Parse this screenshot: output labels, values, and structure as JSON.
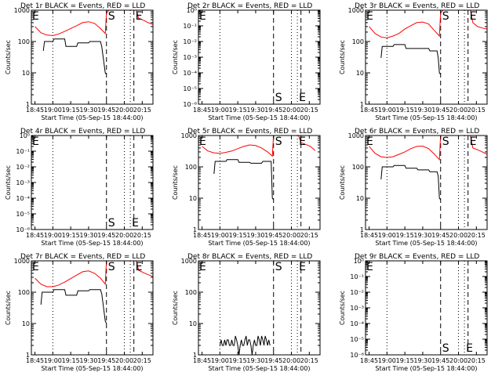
{
  "window": {
    "colors": {
      "background": "#ffffff",
      "axes": "#000000",
      "events": "#000000",
      "lld": "#ff0000"
    }
  },
  "panel_labels": {
    "xlabel": "Start Time (05-Sep-15 18:44:00)",
    "ylabel": "Counts/sec",
    "time_ticks": [
      "18:45",
      "19:00",
      "19:15",
      "19:30",
      "19:45",
      "20:00",
      "20:15"
    ],
    "log_ticks_decades": [
      "1",
      "10",
      "100",
      "1000"
    ],
    "log_ticks_fractional": [
      "10⁰",
      "10⁻¹",
      "10⁻²",
      "10⁻³",
      "10⁻⁴",
      "10⁻⁵",
      "10⁻⁶"
    ],
    "marker_s": "S",
    "marker_e": "E"
  },
  "chart_data": [
    {
      "type": "line",
      "title": "Det 1r BLACK = Events, RED = LLD",
      "xlabel": "Start Time (05-Sep-15 18:44:00)",
      "ylabel": "Counts/sec",
      "yscale": "log",
      "ylim": [
        1,
        1000
      ],
      "x_ticks": [
        "18:45",
        "19:00",
        "19:15",
        "19:30",
        "19:45",
        "20:00",
        "20:15"
      ],
      "y_ticks": [
        "1",
        "10",
        "100",
        "1000"
      ],
      "markers": [
        {
          "label": "E",
          "time": "18:45"
        },
        {
          "label": "S",
          "time": "19:45"
        },
        {
          "label": "E",
          "time": "20:08"
        }
      ],
      "series": [
        {
          "name": "LLD",
          "color": "#ff0000",
          "x": [
            "18:45",
            "18:50",
            "18:55",
            "19:00",
            "19:05",
            "19:10",
            "19:15",
            "19:20",
            "19:25",
            "19:30",
            "19:35",
            "19:40",
            "19:44",
            "19:45",
            "19:47",
            "20:10",
            "20:12",
            "20:16",
            "20:20",
            "20:24"
          ],
          "values": [
            300,
            190,
            160,
            155,
            175,
            210,
            260,
            320,
            400,
            430,
            380,
            260,
            180,
            800,
            1000,
            1000,
            550,
            480,
            400,
            350
          ]
        },
        {
          "name": "Events",
          "color": "#000000",
          "x": [
            "18:52",
            "18:53",
            "19:00",
            "19:01",
            "19:10",
            "19:11",
            "19:20",
            "19:21",
            "19:30",
            "19:31",
            "19:40",
            "19:41",
            "19:44",
            "19:45"
          ],
          "values": [
            50,
            100,
            100,
            120,
            120,
            70,
            70,
            90,
            90,
            100,
            100,
            70,
            10,
            9
          ]
        }
      ]
    },
    {
      "type": "line",
      "title": "Det 2r BLACK = Events, RED = LLD",
      "xlabel": "Start Time (05-Sep-15 18:44:00)",
      "ylabel": "Counts/sec",
      "yscale": "log",
      "ylim": [
        1e-06,
        1
      ],
      "x_ticks": [
        "18:45",
        "19:00",
        "19:15",
        "19:30",
        "19:45",
        "20:00",
        "20:15"
      ],
      "y_ticks": [
        "10⁰",
        "10⁻¹",
        "10⁻²",
        "10⁻³",
        "10⁻⁴",
        "10⁻⁵",
        "10⁻⁶"
      ],
      "markers": [
        {
          "label": "E",
          "time": "18:45"
        },
        {
          "label": "S",
          "time": "19:45"
        },
        {
          "label": "E",
          "time": "20:05"
        }
      ],
      "series": []
    },
    {
      "type": "line",
      "title": "Det 3r BLACK = Events, RED = LLD",
      "xlabel": "Start Time (05-Sep-15 18:44:00)",
      "ylabel": "Counts/sec",
      "yscale": "log",
      "ylim": [
        1,
        1000
      ],
      "x_ticks": [
        "18:45",
        "19:00",
        "19:15",
        "19:30",
        "19:45",
        "20:00",
        "20:15"
      ],
      "y_ticks": [
        "1",
        "10",
        "100",
        "1000"
      ],
      "markers": [
        {
          "label": "E",
          "time": "18:45"
        },
        {
          "label": "S",
          "time": "19:45"
        },
        {
          "label": "E",
          "time": "20:08"
        }
      ],
      "series": [
        {
          "name": "LLD",
          "color": "#ff0000",
          "x": [
            "18:45",
            "18:50",
            "18:55",
            "19:00",
            "19:05",
            "19:10",
            "19:15",
            "19:20",
            "19:25",
            "19:30",
            "19:35",
            "19:40",
            "19:44",
            "19:45",
            "19:47",
            "20:10",
            "20:12",
            "20:16",
            "20:20",
            "20:24"
          ],
          "values": [
            300,
            180,
            140,
            130,
            150,
            180,
            250,
            320,
            400,
            420,
            360,
            220,
            150,
            800,
            1000,
            1000,
            400,
            300,
            270,
            250
          ]
        },
        {
          "name": "Events",
          "color": "#000000",
          "x": [
            "18:55",
            "18:56",
            "19:05",
            "19:06",
            "19:15",
            "19:16",
            "19:25",
            "19:26",
            "19:35",
            "19:36",
            "19:42",
            "19:43",
            "19:44",
            "19:45"
          ],
          "values": [
            30,
            70,
            70,
            80,
            80,
            60,
            60,
            60,
            60,
            50,
            50,
            30,
            10,
            9
          ]
        }
      ]
    },
    {
      "type": "line",
      "title": "Det 4r BLACK = Events, RED = LLD",
      "xlabel": "Start Time (05-Sep-15 18:44:00)",
      "ylabel": "Counts/sec",
      "yscale": "log",
      "ylim": [
        1e-06,
        1
      ],
      "x_ticks": [
        "18:45",
        "19:00",
        "19:15",
        "19:30",
        "19:45",
        "20:00",
        "20:15"
      ],
      "y_ticks": [
        "10⁰",
        "10⁻¹",
        "10⁻²",
        "10⁻³",
        "10⁻⁴",
        "10⁻⁵",
        "10⁻⁶"
      ],
      "markers": [
        {
          "label": "E",
          "time": "18:45"
        },
        {
          "label": "S",
          "time": "19:45"
        },
        {
          "label": "E",
          "time": "20:05"
        }
      ],
      "series": []
    },
    {
      "type": "line",
      "title": "Det 5r BLACK = Events, RED = LLD",
      "xlabel": "Start Time (05-Sep-15 18:44:00)",
      "ylabel": "Counts/sec",
      "yscale": "log",
      "ylim": [
        1,
        1000
      ],
      "x_ticks": [
        "18:45",
        "19:00",
        "19:15",
        "19:30",
        "19:45",
        "20:00",
        "20:15"
      ],
      "y_ticks": [
        "1",
        "10",
        "100",
        "1000"
      ],
      "markers": [
        {
          "label": "E",
          "time": "18:45"
        },
        {
          "label": "S",
          "time": "19:45"
        },
        {
          "label": "E",
          "time": "20:05"
        }
      ],
      "series": [
        {
          "name": "LLD",
          "color": "#ff0000",
          "x": [
            "18:45",
            "18:50",
            "18:55",
            "19:00",
            "19:05",
            "19:10",
            "19:15",
            "19:20",
            "19:25",
            "19:30",
            "19:35",
            "19:40",
            "19:44",
            "19:45",
            "19:47",
            "20:06",
            "20:08",
            "20:16",
            "20:20"
          ],
          "values": [
            450,
            320,
            280,
            270,
            290,
            320,
            380,
            450,
            500,
            480,
            400,
            300,
            220,
            1000,
            1000,
            1000,
            600,
            450,
            330
          ]
        },
        {
          "name": "Events",
          "color": "#000000",
          "x": [
            "18:55",
            "18:56",
            "19:05",
            "19:06",
            "19:15",
            "19:16",
            "19:25",
            "19:26",
            "19:35",
            "19:36",
            "19:43",
            "19:44",
            "19:45"
          ],
          "values": [
            60,
            150,
            150,
            170,
            170,
            140,
            140,
            130,
            130,
            150,
            150,
            10,
            9
          ]
        }
      ]
    },
    {
      "type": "line",
      "title": "Det 6r BLACK = Events, RED = LLD",
      "xlabel": "Start Time (05-Sep-15 18:44:00)",
      "ylabel": "Counts/sec",
      "yscale": "log",
      "ylim": [
        1,
        1000
      ],
      "x_ticks": [
        "18:45",
        "19:00",
        "19:15",
        "19:30",
        "19:45",
        "20:00",
        "20:15"
      ],
      "y_ticks": [
        "1",
        "10",
        "100",
        "1000"
      ],
      "markers": [
        {
          "label": "E",
          "time": "18:45"
        },
        {
          "label": "S",
          "time": "19:45"
        },
        {
          "label": "E",
          "time": "20:08"
        }
      ],
      "series": [
        {
          "name": "LLD",
          "color": "#ff0000",
          "x": [
            "18:45",
            "18:50",
            "18:55",
            "19:00",
            "19:05",
            "19:10",
            "19:15",
            "19:20",
            "19:25",
            "19:30",
            "19:35",
            "19:40",
            "19:44",
            "19:45",
            "19:47",
            "20:10",
            "20:12",
            "20:16",
            "20:20",
            "20:24"
          ],
          "values": [
            450,
            270,
            210,
            200,
            210,
            250,
            300,
            380,
            450,
            460,
            380,
            250,
            170,
            1000,
            1000,
            1000,
            400,
            350,
            300,
            250
          ]
        },
        {
          "name": "Events",
          "color": "#000000",
          "x": [
            "18:55",
            "18:56",
            "19:05",
            "19:06",
            "19:15",
            "19:16",
            "19:25",
            "19:26",
            "19:35",
            "19:36",
            "19:42",
            "19:43",
            "19:44",
            "19:45"
          ],
          "values": [
            40,
            100,
            100,
            110,
            110,
            90,
            90,
            80,
            80,
            70,
            70,
            50,
            10,
            9
          ]
        }
      ]
    },
    {
      "type": "line",
      "title": "Det 7r BLACK = Events, RED = LLD",
      "xlabel": "Start Time (05-Sep-15 18:44:00)",
      "ylabel": "Counts/sec",
      "yscale": "log",
      "ylim": [
        1,
        1000
      ],
      "x_ticks": [
        "18:45",
        "19:00",
        "19:15",
        "19:30",
        "19:45",
        "20:00",
        "20:15"
      ],
      "y_ticks": [
        "1",
        "10",
        "100",
        "1000"
      ],
      "markers": [
        {
          "label": "E",
          "time": "18:45"
        },
        {
          "label": "S",
          "time": "19:45"
        },
        {
          "label": "E",
          "time": "20:08"
        }
      ],
      "series": [
        {
          "name": "LLD",
          "color": "#ff0000",
          "x": [
            "18:45",
            "18:50",
            "18:55",
            "19:00",
            "19:05",
            "19:10",
            "19:15",
            "19:20",
            "19:25",
            "19:30",
            "19:35",
            "19:40",
            "19:44",
            "19:45",
            "19:47",
            "20:10",
            "20:12",
            "20:16",
            "20:20",
            "20:24"
          ],
          "values": [
            280,
            180,
            150,
            150,
            170,
            210,
            270,
            350,
            450,
            480,
            400,
            280,
            180,
            1000,
            1000,
            1000,
            500,
            420,
            360,
            320
          ]
        },
        {
          "name": "Events",
          "color": "#000000",
          "x": [
            "18:50",
            "18:51",
            "19:00",
            "19:01",
            "19:10",
            "19:11",
            "19:20",
            "19:21",
            "19:30",
            "19:31",
            "19:40",
            "19:41",
            "19:44",
            "19:45"
          ],
          "values": [
            40,
            100,
            100,
            120,
            120,
            80,
            80,
            110,
            110,
            120,
            120,
            90,
            12,
            10
          ]
        }
      ]
    },
    {
      "type": "line",
      "title": "Det 8r BLACK = Events, RED = LLD",
      "xlabel": "Start Time (05-Sep-15 18:44:00)",
      "ylabel": "Counts/sec",
      "yscale": "log",
      "ylim": [
        1,
        1000
      ],
      "x_ticks": [
        "18:45",
        "19:00",
        "19:15",
        "19:30",
        "19:45",
        "20:00",
        "20:15"
      ],
      "y_ticks": [
        "1",
        "10",
        "100",
        "1000"
      ],
      "markers": [
        {
          "label": "E",
          "time": "18:45"
        },
        {
          "label": "S",
          "time": "19:45"
        },
        {
          "label": "E",
          "time": "20:05"
        }
      ],
      "series": [
        {
          "name": "Events",
          "color": "#000000",
          "x": [
            "19:00",
            "19:01",
            "19:02",
            "19:03",
            "19:04",
            "19:05",
            "19:06",
            "19:07",
            "19:08",
            "19:09",
            "19:10",
            "19:11",
            "19:12",
            "19:13",
            "19:14",
            "19:15",
            "19:16",
            "19:17",
            "19:18",
            "19:19",
            "19:20",
            "19:21",
            "19:22",
            "19:23",
            "19:24",
            "19:25",
            "19:26",
            "19:27",
            "19:28",
            "19:29",
            "19:30",
            "19:31",
            "19:32",
            "19:33",
            "19:34",
            "19:35",
            "19:36",
            "19:37",
            "19:38",
            "19:39",
            "19:40",
            "19:41",
            "19:42"
          ],
          "values": [
            2,
            3,
            2,
            2,
            3,
            2,
            3,
            3,
            2,
            2,
            3,
            2,
            2,
            4,
            3,
            2,
            1,
            2,
            3,
            2,
            2,
            3,
            4,
            2,
            3,
            3,
            2,
            1,
            2,
            3,
            2,
            2,
            4,
            3,
            2,
            4,
            3,
            2,
            4,
            3,
            2,
            3,
            2
          ]
        }
      ]
    },
    {
      "type": "line",
      "title": "Det 9r BLACK = Events, RED = LLD",
      "xlabel": "Start Time (05-Sep-15 18:44:00)",
      "ylabel": "Counts/sec",
      "yscale": "log",
      "ylim": [
        1e-06,
        1
      ],
      "x_ticks": [
        "18:45",
        "19:00",
        "19:15",
        "19:30",
        "19:45",
        "20:00",
        "20:15"
      ],
      "y_ticks": [
        "10⁰",
        "10⁻¹",
        "10⁻²",
        "10⁻³",
        "10⁻⁴",
        "10⁻⁵",
        "10⁻⁶"
      ],
      "markers": [
        {
          "label": "E",
          "time": "18:45"
        },
        {
          "label": "S",
          "time": "19:45"
        },
        {
          "label": "E",
          "time": "20:05"
        }
      ],
      "series": []
    }
  ]
}
